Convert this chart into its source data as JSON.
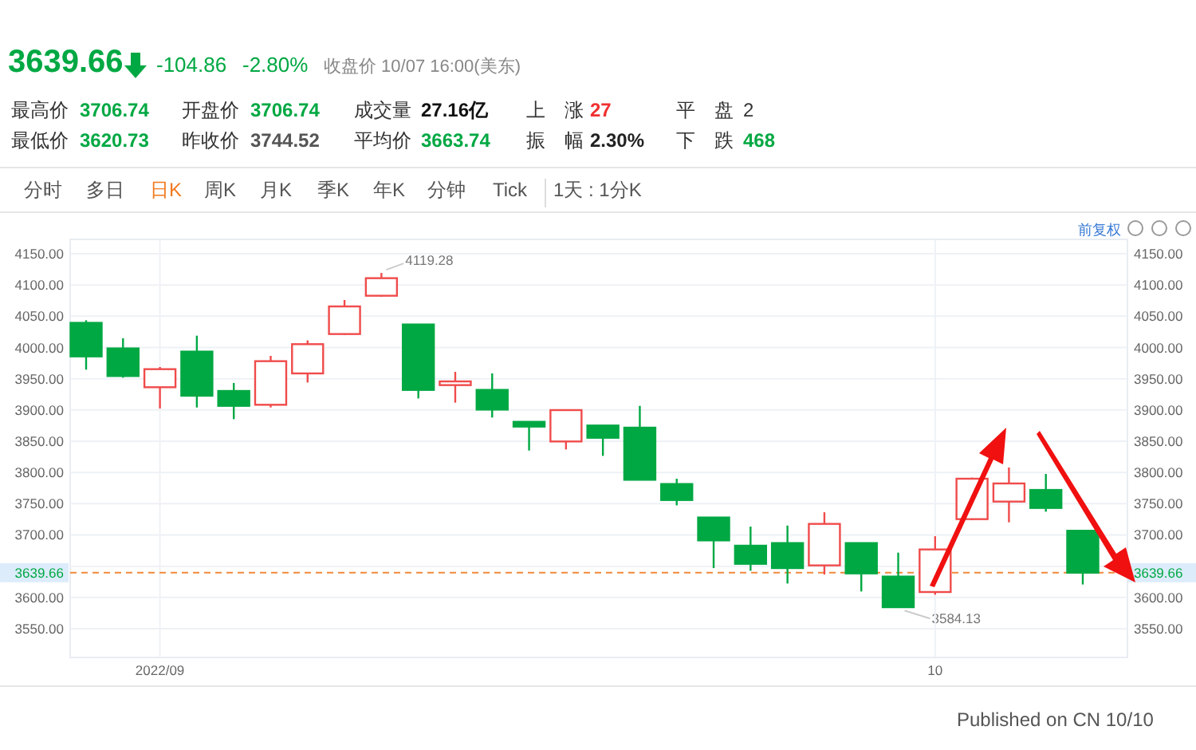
{
  "chart_data": {
    "type": "candlestick",
    "categories": [
      null,
      null,
      "2022/09",
      null,
      null,
      null,
      null,
      null,
      null,
      null,
      null,
      null,
      null,
      null,
      null,
      null,
      null,
      null,
      null,
      null,
      null,
      null,
      null,
      "10",
      null,
      null,
      null,
      null
    ],
    "ohlc": [
      [
        4039.4,
        4043.6,
        3964.5,
        3985.7
      ],
      [
        3998.5,
        4014.7,
        3951.7,
        3954.3
      ],
      [
        3936.4,
        3968.7,
        3902.3,
        3965.3
      ],
      [
        3993.4,
        4018.9,
        3904,
        3922.8
      ],
      [
        3930.4,
        3943.2,
        3885.3,
        3906.6
      ],
      [
        3908.3,
        3986.6,
        3904,
        3978.1
      ],
      [
        3958.5,
        4011.3,
        3944,
        4005.3
      ],
      [
        4021.5,
        4076,
        4019.8,
        4065.7
      ],
      [
        4082.8,
        4119.28,
        4081.1,
        4110.9
      ],
      [
        4036.8,
        4037,
        3918.5,
        3932.1
      ],
      [
        3939.8,
        3961,
        3911.7,
        3945.7
      ],
      [
        3932.1,
        3958.5,
        3887.9,
        3900.6
      ],
      [
        3881,
        3881,
        3835.1,
        3873.4
      ],
      [
        3849.6,
        3900.6,
        3836.8,
        3899.8
      ],
      [
        3875.1,
        3875.1,
        3826.6,
        3855.5
      ],
      [
        3871.7,
        3906.6,
        3788.3,
        3788.3
      ],
      [
        3781.5,
        3790,
        3747.4,
        3755.9
      ],
      [
        3727.9,
        3728,
        3647,
        3691.3
      ],
      [
        3682.8,
        3713.4,
        3642.7,
        3653.8
      ],
      [
        3687,
        3715,
        3622.3,
        3647
      ],
      [
        3651.3,
        3736.4,
        3636.8,
        3717.7
      ],
      [
        3687,
        3687,
        3609.6,
        3638.5
      ],
      [
        3633.4,
        3671.7,
        3584.13,
        3584.4
      ],
      [
        3608.7,
        3698,
        3604.4,
        3676.8
      ],
      [
        3725.3,
        3791.7,
        3723.6,
        3790
      ],
      [
        3753.4,
        3808,
        3720.2,
        3782.4
      ],
      [
        3772,
        3797.6,
        3737.2,
        3743.2
      ],
      [
        3706.74,
        3706.74,
        3620.73,
        3639.66
      ]
    ],
    "colors": [
      "#00a843",
      "#00a843",
      "#f04b4b",
      "#00a843",
      "#00a843",
      "#f04b4b",
      "#f04b4b",
      "#f04b4b",
      "#f04b4b",
      "#00a843",
      "#f04b4b",
      "#00a843",
      "#00a843",
      "#f04b4b",
      "#00a843",
      "#00a843",
      "#00a843",
      "#00a843",
      "#00a843",
      "#00a843",
      "#f04b4b",
      "#00a843",
      "#00a843",
      "#f04b4b",
      "#f04b4b",
      "#f04b4b",
      "#00a843",
      "#00a843"
    ],
    "ylim": [
      3504,
      4173
    ],
    "yticks": [
      {
        "value": 3550,
        "label": "3550.00"
      },
      {
        "value": 3600,
        "label": "3600.00"
      },
      {
        "value": 3650,
        "label": null
      },
      {
        "value": 3700,
        "label": "3700.00"
      },
      {
        "value": 3750,
        "label": "3750.00"
      },
      {
        "value": 3800,
        "label": "3800.00"
      },
      {
        "value": 3850,
        "label": "3850.00"
      },
      {
        "value": 3900,
        "label": "3900.00"
      },
      {
        "value": 3950,
        "label": "3950.00"
      },
      {
        "value": 4000,
        "label": "4000.00"
      },
      {
        "value": 4050,
        "label": "4050.00"
      },
      {
        "value": 4100,
        "label": "4100.00"
      },
      {
        "value": 4150,
        "label": "4150.00"
      }
    ],
    "grid": true,
    "ref_lines": [
      {
        "axis": "y",
        "value": 3639.66,
        "label": "3639.66",
        "color": "#f08a3c",
        "line_style": "dashed"
      }
    ],
    "annotations": [
      "3639.66",
      "-104.86",
      "-2.80%",
      "收盘价 10/07 16:00(美东)",
      "最高价",
      "3706.74",
      "最低价",
      "3620.73",
      "开盘价",
      "3706.74",
      "昨收价",
      "3744.52",
      "成交量",
      "27.16亿",
      "平均价",
      "3663.74",
      "上　涨",
      "27",
      "振　幅",
      "2.30%",
      "平　盘",
      "2",
      "下　跌",
      "468",
      "分时",
      "多日",
      "日K",
      "周K",
      "月K",
      "季K",
      "年K",
      "分钟",
      "Tick",
      "1天 : 1分K",
      "前复权",
      "Published on CN 10/10",
      "4119.28",
      "3584.13"
    ]
  }
}
